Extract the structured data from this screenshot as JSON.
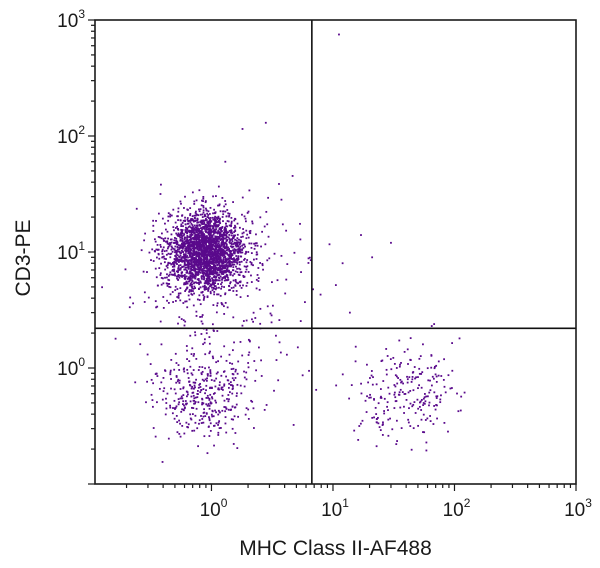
{
  "chart_data": {
    "type": "scatter",
    "title": "",
    "xlabel": "MHC Class II-AF488",
    "ylabel": "CD3-PE",
    "x_scale": "log",
    "y_scale": "log",
    "xlim": [
      0.11,
      1000
    ],
    "ylim": [
      0.1,
      1000
    ],
    "x_ticks": [
      {
        "base": "10",
        "exp": "0"
      },
      {
        "base": "10",
        "exp": "1"
      },
      {
        "base": "10",
        "exp": "2"
      },
      {
        "base": "10",
        "exp": "3"
      }
    ],
    "y_ticks": [
      {
        "base": "10",
        "exp": "0"
      },
      {
        "base": "10",
        "exp": "1"
      },
      {
        "base": "10",
        "exp": "2"
      },
      {
        "base": "10",
        "exp": "3"
      }
    ],
    "grid": false,
    "point_color": "#5a0a8c",
    "quadrant_gates": {
      "x": 6.7,
      "y": 2.2
    },
    "populations": [
      {
        "center": [
          0.9,
          10
        ],
        "spread": [
          0.16,
          0.17
        ],
        "count": 2600
      },
      {
        "center": [
          0.85,
          0.6
        ],
        "spread": [
          0.2,
          0.2
        ],
        "count": 380
      },
      {
        "center": [
          38,
          0.6
        ],
        "spread": [
          0.2,
          0.2
        ],
        "count": 230
      },
      {
        "center": [
          1.5,
          4
        ],
        "spread": [
          0.45,
          0.4
        ],
        "count": 200
      }
    ],
    "outliers": [
      [
        11.2,
        750
      ],
      [
        2.8,
        130
      ],
      [
        1.8,
        115
      ],
      [
        1.3,
        60
      ],
      [
        30,
        12
      ],
      [
        17,
        14
      ],
      [
        21,
        9
      ],
      [
        12,
        8
      ],
      [
        55,
        1.6
      ],
      [
        110,
        1.8
      ],
      [
        65,
        2.3
      ]
    ]
  }
}
